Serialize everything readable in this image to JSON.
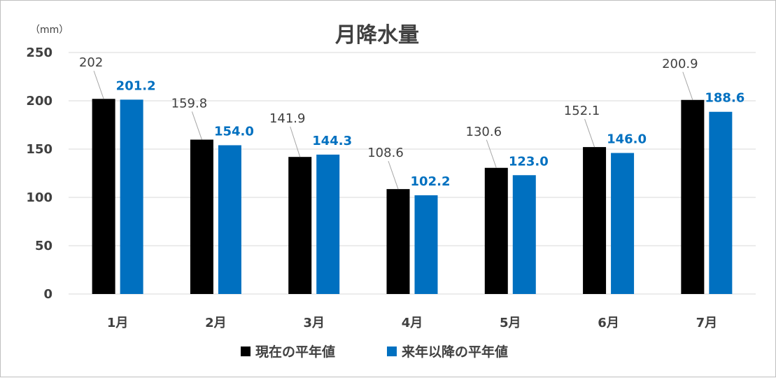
{
  "chart_data": {
    "type": "bar",
    "title": "月降水量",
    "unit_label": "（mm）",
    "categories": [
      "1月",
      "2月",
      "3月",
      "4月",
      "5月",
      "6月",
      "7月"
    ],
    "series": [
      {
        "name": "現在の平年値",
        "color": "#000000",
        "values": [
          202,
          159.8,
          141.9,
          108.6,
          130.6,
          152.1,
          200.9
        ],
        "labels": [
          "202",
          "159.8",
          "141.9",
          "108.6",
          "130.6",
          "152.1",
          "200.9"
        ],
        "label_color": "#404040"
      },
      {
        "name": "来年以降の平年値",
        "color": "#0070c0",
        "values": [
          201.2,
          154.0,
          144.3,
          102.2,
          123.0,
          146.0,
          188.6
        ],
        "labels": [
          "201.2",
          "154.0",
          "144.3",
          "102.2",
          "123.0",
          "146.0",
          "188.6"
        ],
        "label_color": "#0070c0"
      }
    ],
    "ylim": [
      0,
      250
    ],
    "yticks": [
      0,
      50,
      100,
      150,
      200,
      250
    ],
    "grid": true,
    "legend_position": "bottom"
  }
}
